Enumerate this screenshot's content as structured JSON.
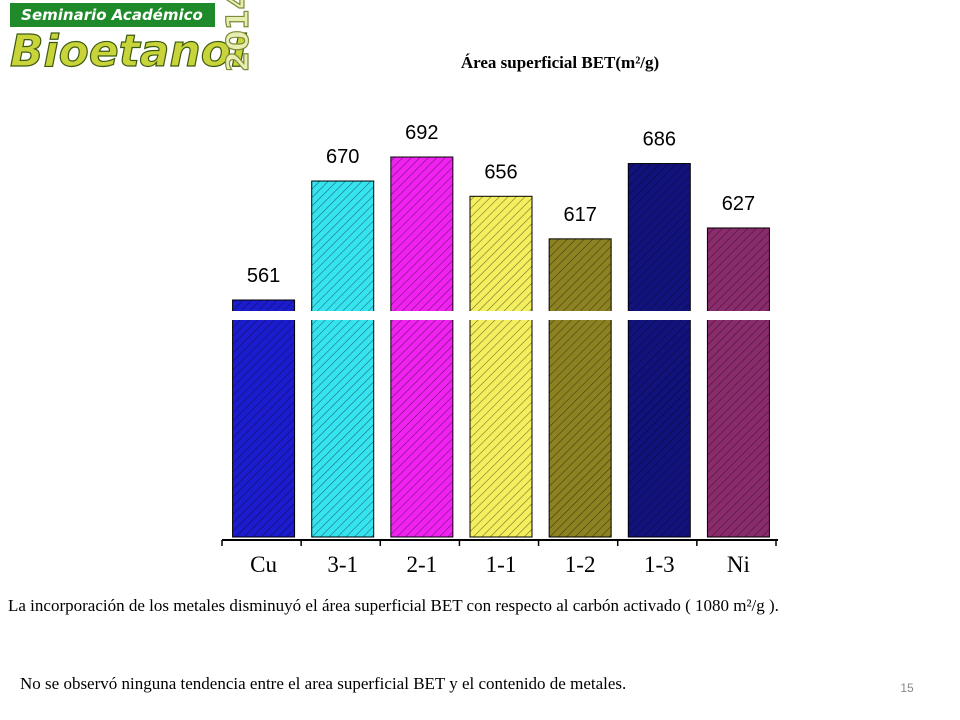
{
  "header": {
    "badge": "Seminario Académico",
    "logo": "Bioetanol",
    "year": "2014"
  },
  "chart_data": {
    "type": "bar",
    "title": "Área superficial BET(m²/g)",
    "categories": [
      "Cu",
      "3-1",
      "2-1",
      "1-1",
      "1-2",
      "1-3",
      "Ni"
    ],
    "values": [
      561,
      670,
      692,
      656,
      617,
      686,
      627
    ],
    "colors": [
      "#1c1ccf",
      "#36e4f0",
      "#f022f0",
      "#f4ef5e",
      "#8c8222",
      "#12127c",
      "#8a2c6c"
    ],
    "axis_break": true
  },
  "notes": [
    "La incorporación de los metales disminuyó el área superficial BET con respecto al carbón activado ( 1080 m²/g ).",
    "No se observó ninguna tendencia entre el area superficial BET y el contenido de metales."
  ],
  "page_number": "15"
}
